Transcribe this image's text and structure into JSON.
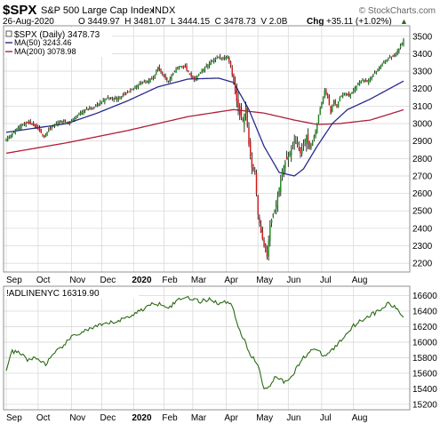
{
  "header": {
    "symbol": "$SPX",
    "name": "S&P 500 Large Cap Index",
    "exchange": "INDX",
    "watermark": "© StockCharts.com",
    "date": "26-Aug-2020",
    "ohlc_line": "O 3449.97  H 3481.07  L 3444.15  C 3478.73  V 2.0B",
    "chg_label": "Chg",
    "chg_value": "+35.11 (+1.02%)",
    "chg_marker": "▲"
  },
  "legend": {
    "price": "$SPX (Daily) 3478.73",
    "ma50": "MA(50) 3243.46",
    "ma200": "MA(200) 3078.98",
    "breadth": "!ADLINENYC 16319.90"
  },
  "colors": {
    "candle_up": "#1e8a1e",
    "candle_down": "#d01818",
    "wick": "#000000",
    "ma50": "#2a2a8c",
    "ma200": "#b01e3a",
    "adline": "#2a6a12",
    "grid": "#d9d9d9",
    "frame": "#909090",
    "current_marker": "#2a6a12"
  },
  "chart_data": [
    {
      "type": "candlestick",
      "title": "$SPX (Daily) 3478.73",
      "x_axis_labels": [
        "Sep",
        "Oct",
        "Nov",
        "Dec",
        "2020",
        "Feb",
        "Mar",
        "Apr",
        "May",
        "Jun",
        "Jul",
        "Aug"
      ],
      "yticks": [
        2200,
        2300,
        2400,
        2500,
        2600,
        2700,
        2800,
        2900,
        3000,
        3100,
        3200,
        3300,
        3400,
        3500
      ],
      "ylim": [
        2150,
        3560
      ],
      "grid": true,
      "legend_position": "top-left",
      "close_anchors": [
        [
          0,
          2910
        ],
        [
          5,
          2950
        ],
        [
          10,
          2995
        ],
        [
          15,
          3005
        ],
        [
          20,
          2980
        ],
        [
          25,
          2925
        ],
        [
          28,
          2965
        ],
        [
          32,
          2995
        ],
        [
          37,
          3015
        ],
        [
          42,
          3005
        ],
        [
          47,
          3050
        ],
        [
          52,
          3080
        ],
        [
          57,
          3090
        ],
        [
          62,
          3120
        ],
        [
          67,
          3150
        ],
        [
          72,
          3140
        ],
        [
          77,
          3160
        ],
        [
          82,
          3190
        ],
        [
          87,
          3225
        ],
        [
          92,
          3240
        ],
        [
          97,
          3260
        ],
        [
          100,
          3320
        ],
        [
          103,
          3285
        ],
        [
          107,
          3240
        ],
        [
          110,
          3290
        ],
        [
          114,
          3330
        ],
        [
          118,
          3325
        ],
        [
          121,
          3280
        ],
        [
          124,
          3250
        ],
        [
          127,
          3285
        ],
        [
          131,
          3320
        ],
        [
          134,
          3345
        ],
        [
          137,
          3365
        ],
        [
          140,
          3380
        ],
        [
          143,
          3375
        ],
        [
          146,
          3385
        ],
        [
          148,
          3330
        ],
        [
          150,
          3225
        ],
        [
          152,
          3130
        ],
        [
          154,
          3050
        ],
        [
          156,
          3020
        ],
        [
          158,
          3090
        ],
        [
          160,
          2880
        ],
        [
          162,
          2750
        ],
        [
          164,
          2720
        ],
        [
          166,
          2480
        ],
        [
          168,
          2380
        ],
        [
          170,
          2300
        ],
        [
          172,
          2237
        ],
        [
          174,
          2420
        ],
        [
          176,
          2480
        ],
        [
          178,
          2530
        ],
        [
          180,
          2630
        ],
        [
          182,
          2730
        ],
        [
          184,
          2780
        ],
        [
          186,
          2810
        ],
        [
          188,
          2860
        ],
        [
          190,
          2900
        ],
        [
          192,
          2880
        ],
        [
          194,
          2830
        ],
        [
          196,
          2880
        ],
        [
          198,
          2930
        ],
        [
          200,
          2860
        ],
        [
          202,
          2900
        ],
        [
          204,
          2955
        ],
        [
          206,
          3050
        ],
        [
          208,
          3120
        ],
        [
          210,
          3190
        ],
        [
          212,
          3150
        ],
        [
          214,
          3060
        ],
        [
          216,
          3130
        ],
        [
          218,
          3100
        ],
        [
          220,
          3150
        ],
        [
          223,
          3175
        ],
        [
          226,
          3160
        ],
        [
          229,
          3190
        ],
        [
          232,
          3230
        ],
        [
          235,
          3250
        ],
        [
          238,
          3240
        ],
        [
          241,
          3270
        ],
        [
          244,
          3300
        ],
        [
          247,
          3330
        ],
        [
          250,
          3360
        ],
        [
          253,
          3380
        ],
        [
          256,
          3390
        ],
        [
          259,
          3430
        ],
        [
          262,
          3478.73
        ]
      ],
      "ma50_anchors": [
        [
          0,
          2950
        ],
        [
          20,
          2975
        ],
        [
          40,
          3000
        ],
        [
          60,
          3060
        ],
        [
          80,
          3130
        ],
        [
          100,
          3210
        ],
        [
          120,
          3255
        ],
        [
          140,
          3260
        ],
        [
          150,
          3235
        ],
        [
          160,
          3080
        ],
        [
          170,
          2870
        ],
        [
          180,
          2720
        ],
        [
          190,
          2700
        ],
        [
          196,
          2740
        ],
        [
          205,
          2870
        ],
        [
          215,
          3000
        ],
        [
          225,
          3080
        ],
        [
          240,
          3140
        ],
        [
          262,
          3243.46
        ]
      ],
      "ma200_anchors": [
        [
          0,
          2830
        ],
        [
          40,
          2890
        ],
        [
          80,
          2960
        ],
        [
          120,
          3040
        ],
        [
          150,
          3080
        ],
        [
          170,
          3060
        ],
        [
          190,
          3020
        ],
        [
          205,
          2995
        ],
        [
          220,
          3000
        ],
        [
          240,
          3020
        ],
        [
          262,
          3078.98
        ]
      ]
    },
    {
      "type": "line",
      "title": "!ADLINENYC 16319.90",
      "x_axis_labels": [
        "Sep",
        "Oct",
        "Nov",
        "Dec",
        "2020",
        "Feb",
        "Mar",
        "Apr",
        "May",
        "Jun",
        "Jul",
        "Aug"
      ],
      "yticks": [
        15200,
        15400,
        15600,
        15800,
        16000,
        16200,
        16400,
        16600
      ],
      "ylim": [
        15130,
        16720
      ],
      "anchors": [
        [
          0,
          15650
        ],
        [
          4,
          15880
        ],
        [
          9,
          15860
        ],
        [
          14,
          15780
        ],
        [
          20,
          15790
        ],
        [
          26,
          15720
        ],
        [
          31,
          15830
        ],
        [
          37,
          15950
        ],
        [
          45,
          16090
        ],
        [
          55,
          16170
        ],
        [
          65,
          16230
        ],
        [
          75,
          16280
        ],
        [
          85,
          16370
        ],
        [
          95,
          16480
        ],
        [
          102,
          16500
        ],
        [
          108,
          16450
        ],
        [
          114,
          16560
        ],
        [
          120,
          16580
        ],
        [
          128,
          16520
        ],
        [
          134,
          16560
        ],
        [
          140,
          16500
        ],
        [
          148,
          16520
        ],
        [
          154,
          16150
        ],
        [
          160,
          15880
        ],
        [
          166,
          15700
        ],
        [
          170,
          15400
        ],
        [
          174,
          15450
        ],
        [
          178,
          15570
        ],
        [
          184,
          15480
        ],
        [
          190,
          15620
        ],
        [
          196,
          15800
        ],
        [
          202,
          15920
        ],
        [
          210,
          15820
        ],
        [
          216,
          15920
        ],
        [
          222,
          16050
        ],
        [
          228,
          16200
        ],
        [
          234,
          16280
        ],
        [
          240,
          16350
        ],
        [
          246,
          16400
        ],
        [
          252,
          16500
        ],
        [
          258,
          16420
        ],
        [
          262,
          16319.9
        ]
      ]
    }
  ]
}
